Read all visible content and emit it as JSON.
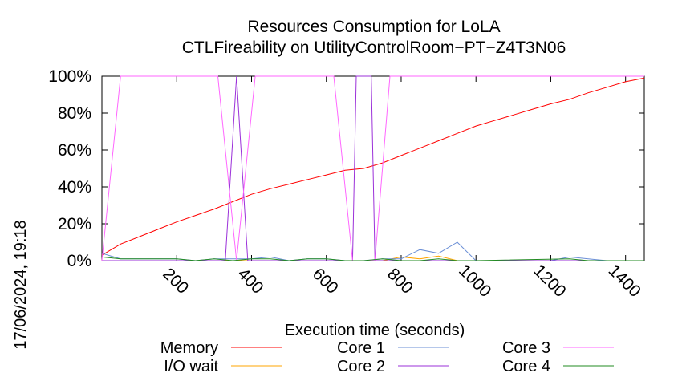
{
  "chart_data": {
    "type": "line",
    "title": "Resources Consumption for LoLA",
    "subtitle": "CTLFireability on UtilityControlRoom−PT−Z4T3N06",
    "xlabel": "Execution time (seconds)",
    "ylabel": "",
    "timestamp": "17/06/2024, 19:18",
    "xlim": [
      0,
      1400
    ],
    "ylim": [
      0,
      100
    ],
    "x_ticks": [
      200,
      400,
      600,
      800,
      1000,
      1200,
      1400
    ],
    "x_tick_labels": [
      "200",
      "400",
      "600",
      "800",
      "1000",
      "1200",
      "1400"
    ],
    "y_ticks": [
      0,
      20,
      40,
      60,
      80,
      100
    ],
    "y_tick_labels": [
      "0%",
      "20%",
      "40%",
      "60%",
      "80%",
      "100%"
    ],
    "grid": false,
    "legend_position": "bottom",
    "series": [
      {
        "name": "Memory",
        "color": "#ff0000",
        "points": [
          [
            0,
            3
          ],
          [
            50,
            9
          ],
          [
            100,
            13
          ],
          [
            150,
            17
          ],
          [
            200,
            21
          ],
          [
            250,
            24.5
          ],
          [
            300,
            28
          ],
          [
            350,
            32
          ],
          [
            400,
            36
          ],
          [
            450,
            39
          ],
          [
            500,
            41.5
          ],
          [
            550,
            44
          ],
          [
            600,
            46.5
          ],
          [
            650,
            49
          ],
          [
            700,
            50
          ],
          [
            750,
            53
          ],
          [
            800,
            57
          ],
          [
            850,
            61
          ],
          [
            900,
            65
          ],
          [
            950,
            69
          ],
          [
            1000,
            73
          ],
          [
            1050,
            76
          ],
          [
            1100,
            79
          ],
          [
            1150,
            82
          ],
          [
            1200,
            85
          ],
          [
            1250,
            87.5
          ],
          [
            1300,
            91
          ],
          [
            1350,
            94
          ],
          [
            1400,
            97
          ],
          [
            1450,
            99
          ]
        ]
      },
      {
        "name": "I/O wait",
        "color": "#ffa500",
        "points": [
          [
            0,
            0
          ],
          [
            750,
            0
          ],
          [
            800,
            2
          ],
          [
            850,
            1
          ],
          [
            900,
            2.5
          ],
          [
            950,
            0
          ],
          [
            1450,
            0
          ]
        ]
      },
      {
        "name": "Core 1",
        "color": "#6b8fd6",
        "points": [
          [
            0,
            4
          ],
          [
            50,
            1
          ],
          [
            100,
            1
          ],
          [
            150,
            1
          ],
          [
            200,
            1
          ],
          [
            250,
            0
          ],
          [
            300,
            1
          ],
          [
            350,
            1
          ],
          [
            400,
            1
          ],
          [
            450,
            2
          ],
          [
            500,
            0
          ],
          [
            550,
            1
          ],
          [
            600,
            1
          ],
          [
            650,
            0
          ],
          [
            700,
            0
          ],
          [
            750,
            1
          ],
          [
            800,
            1
          ],
          [
            850,
            6
          ],
          [
            900,
            4
          ],
          [
            950,
            10
          ],
          [
            1000,
            0
          ],
          [
            1050,
            0
          ],
          [
            1100,
            0
          ],
          [
            1150,
            0
          ],
          [
            1200,
            0
          ],
          [
            1250,
            2
          ],
          [
            1300,
            1
          ],
          [
            1350,
            0
          ],
          [
            1400,
            0
          ],
          [
            1450,
            0
          ]
        ]
      },
      {
        "name": "Core 2",
        "color": "#9b30d9",
        "points": [
          [
            0,
            0
          ],
          [
            330,
            0
          ],
          [
            360,
            100
          ],
          [
            390,
            0
          ],
          [
            670,
            0
          ],
          [
            680,
            100
          ],
          [
            720,
            100
          ],
          [
            730,
            0
          ],
          [
            1450,
            0
          ]
        ]
      },
      {
        "name": "Core 3",
        "color": "#ff66ff",
        "points": [
          [
            0,
            0
          ],
          [
            50,
            100
          ],
          [
            310,
            100
          ],
          [
            360,
            0
          ],
          [
            410,
            100
          ],
          [
            620,
            100
          ],
          [
            670,
            0
          ],
          [
            730,
            0
          ],
          [
            770,
            100
          ],
          [
            1450,
            100
          ]
        ]
      },
      {
        "name": "Core 4",
        "color": "#228b22",
        "points": [
          [
            0,
            2
          ],
          [
            50,
            1
          ],
          [
            100,
            1
          ],
          [
            150,
            1
          ],
          [
            200,
            1
          ],
          [
            250,
            0
          ],
          [
            300,
            1
          ],
          [
            350,
            0
          ],
          [
            400,
            1
          ],
          [
            450,
            1
          ],
          [
            500,
            0
          ],
          [
            550,
            1
          ],
          [
            600,
            1
          ],
          [
            650,
            0
          ],
          [
            700,
            0
          ],
          [
            750,
            1
          ],
          [
            800,
            0
          ],
          [
            850,
            0
          ],
          [
            900,
            1
          ],
          [
            950,
            0
          ],
          [
            1000,
            0
          ],
          [
            1250,
            1
          ],
          [
            1300,
            0
          ],
          [
            1450,
            0
          ]
        ]
      }
    ]
  }
}
